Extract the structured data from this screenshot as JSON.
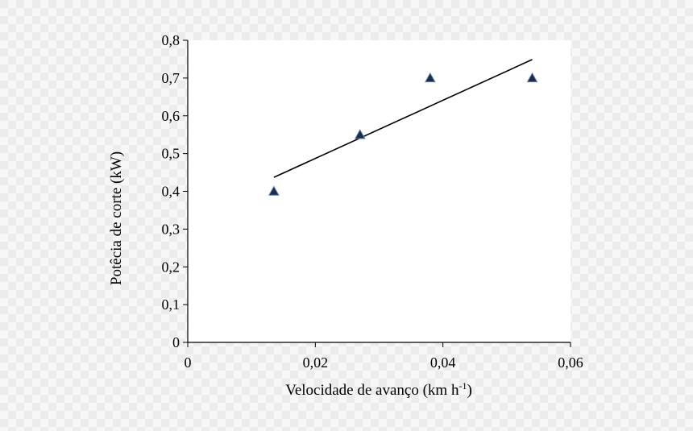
{
  "chart_data": {
    "type": "scatter",
    "xlabel": "Velocidade de avanço (km h",
    "xlabel_sup": "-1",
    "xlabel_end": ")",
    "ylabel": "Potêcia de corte (kW)",
    "xlim": [
      0,
      0.06
    ],
    "ylim": [
      0,
      0.8
    ],
    "x_ticks": [
      0,
      0.02,
      0.04,
      0.06
    ],
    "x_tick_labels": [
      "0",
      "0,02",
      "0,04",
      "0,06"
    ],
    "y_ticks": [
      0,
      0.1,
      0.2,
      0.3,
      0.4,
      0.5,
      0.6,
      0.7,
      0.8
    ],
    "y_tick_labels": [
      "0",
      "0,1",
      "0,2",
      "0,3",
      "0,4",
      "0,5",
      "0,6",
      "0,7",
      "0,8"
    ],
    "grid": false,
    "series": [
      {
        "marker": "triangle",
        "color": "#1c2d4a",
        "x": [
          0.0135,
          0.027,
          0.038,
          0.054
        ],
        "y": [
          0.4,
          0.55,
          0.7,
          0.7
        ]
      }
    ],
    "trendline": {
      "type": "linear",
      "color": "#000000",
      "x": [
        0.0135,
        0.054
      ],
      "y": [
        0.437,
        0.749
      ]
    }
  }
}
